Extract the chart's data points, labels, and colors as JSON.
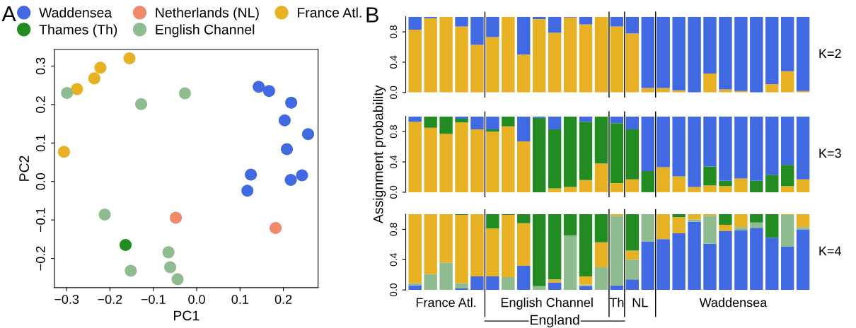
{
  "chart_data": [
    {
      "type": "scatter",
      "title": "A",
      "xlabel": "PC1",
      "ylabel": "PC2",
      "xlim": [
        -0.328,
        0.28
      ],
      "ylim": [
        -0.276,
        0.343
      ],
      "xticks": [
        {
          "value": -0.3,
          "label": "−0.3"
        },
        {
          "value": -0.2,
          "label": "−0.2"
        },
        {
          "value": -0.1,
          "label": "−0.1"
        },
        {
          "value": 0,
          "label": "0.0"
        },
        {
          "value": 0.1,
          "label": "0.1"
        },
        {
          "value": 0.2,
          "label": "0.2"
        }
      ],
      "yticks": [
        {
          "value": -0.2,
          "label": "−0.2"
        },
        {
          "value": -0.1,
          "label": "−0.1"
        },
        {
          "value": 0,
          "label": "0.0"
        },
        {
          "value": 0.1,
          "label": "0.1"
        },
        {
          "value": 0.2,
          "label": "0.2"
        },
        {
          "value": 0.3,
          "label": "0.3"
        }
      ],
      "legend": "top",
      "marker": "circle",
      "series": [
        {
          "name": "Waddensea",
          "color": "#4169e1",
          "x": [
            0.143,
            0.167,
            0.218,
            0.203,
            0.257,
            0.208,
            0.125,
            0.117,
            0.217,
            0.243
          ],
          "values": [
            0.246,
            0.235,
            0.205,
            0.159,
            0.123,
            0.084,
            0.018,
            -0.024,
            0.004,
            0.016
          ]
        },
        {
          "name": "Netherlands (NL)",
          "color": "#f08a6b",
          "x": [
            -0.048,
            0.182
          ],
          "values": [
            -0.094,
            -0.121
          ]
        },
        {
          "name": "France Atl.",
          "color": "#e8b023",
          "x": [
            -0.155,
            -0.222,
            -0.236,
            -0.276,
            -0.306
          ],
          "values": [
            0.32,
            0.296,
            0.268,
            0.24,
            0.077
          ]
        },
        {
          "name": "Thames (Th)",
          "color": "#228b22",
          "x": [
            -0.164
          ],
          "values": [
            -0.165
          ]
        },
        {
          "name": "English Channel",
          "color": "#8fbc8f",
          "x": [
            -0.299,
            -0.027,
            -0.128,
            -0.212,
            -0.065,
            -0.061,
            -0.044,
            -0.152
          ],
          "values": [
            0.23,
            0.229,
            0.201,
            -0.086,
            -0.184,
            -0.223,
            -0.254,
            -0.232
          ]
        }
      ]
    },
    {
      "type": "bar",
      "stacked": true,
      "title": "B",
      "categories": [
        null,
        null,
        null,
        null,
        null,
        null,
        null,
        null,
        null,
        null,
        null,
        null,
        null,
        null,
        null,
        null,
        null,
        null,
        null,
        null,
        null,
        null,
        null,
        null,
        null,
        null
      ],
      "ylim": [
        0,
        1
      ],
      "yticks": [
        {
          "value": 0,
          "label": "0.0"
        },
        {
          "value": 0.4,
          "label": "0.4"
        },
        {
          "value": 0.8,
          "label": "0.8"
        }
      ],
      "tick_labels": "y",
      "annotations": [
        "K=2"
      ],
      "series": [
        {
          "color": "#e8b023",
          "values": [
            0.83,
            0.98,
            1.0,
            0.87,
            0.63,
            0.73,
            1.0,
            0.5,
            0.97,
            0.79,
            0.99,
            0.9,
            1.0,
            0.87,
            0.78,
            0.06,
            0.06,
            0.03,
            0,
            0.25,
            0.04,
            0.02,
            0,
            0.11,
            0.28,
            0.02
          ]
        },
        {
          "color": "#4169e1",
          "values": [
            0.17,
            0.02,
            0,
            0.13,
            0.37,
            0.27,
            0,
            0.5,
            0.03,
            0.21,
            0.01,
            0.1,
            0,
            0.13,
            0.22,
            0.94,
            0.94,
            0.97,
            1.0,
            0.75,
            0.96,
            0.98,
            1.0,
            0.89,
            0.72,
            0.98
          ]
        }
      ]
    },
    {
      "type": "bar",
      "stacked": true,
      "ylabel": "Assignment probability",
      "categories": [
        null,
        null,
        null,
        null,
        null,
        null,
        null,
        null,
        null,
        null,
        null,
        null,
        null,
        null,
        null,
        null,
        null,
        null,
        null,
        null,
        null,
        null,
        null,
        null,
        null,
        null
      ],
      "ylim": [
        0,
        1
      ],
      "yticks": [
        {
          "value": 0,
          "label": "0.0"
        },
        {
          "value": 0.4,
          "label": "0.4"
        },
        {
          "value": 0.8,
          "label": "0.8"
        }
      ],
      "tick_labels": "y",
      "annotations": [
        "K=3"
      ],
      "series": [
        {
          "color": "#e8b023",
          "values": [
            0.93,
            0.85,
            0.77,
            0.92,
            0.83,
            0.8,
            0.87,
            0.67,
            0,
            0.05,
            0.07,
            0.16,
            0.38,
            0.12,
            0.17,
            0,
            0.33,
            0.21,
            0.07,
            0.09,
            0.08,
            0.18,
            0,
            0,
            0.08,
            0.17
          ]
        },
        {
          "color": "#228b22",
          "values": [
            0,
            0.15,
            0.23,
            0.05,
            0,
            0.03,
            0.13,
            0,
            0.98,
            0.78,
            0.93,
            0.77,
            0.62,
            0.79,
            0.66,
            0.28,
            0,
            0,
            0,
            0.25,
            0.07,
            0,
            0.15,
            0.23,
            0.28,
            0
          ]
        },
        {
          "color": "#4169e1",
          "values": [
            0.07,
            0,
            0,
            0.03,
            0.17,
            0.17,
            0,
            0.33,
            0.02,
            0.17,
            0,
            0.07,
            0,
            0.09,
            0.17,
            0.72,
            0.67,
            0.79,
            0.93,
            0.66,
            0.85,
            0.82,
            0.85,
            0.77,
            0.64,
            0.83
          ]
        }
      ]
    },
    {
      "type": "bar",
      "stacked": true,
      "categories": [
        null,
        null,
        null,
        null,
        null,
        null,
        null,
        null,
        null,
        null,
        null,
        null,
        null,
        null,
        null,
        null,
        null,
        null,
        null,
        null,
        null,
        null,
        null,
        null,
        null,
        null
      ],
      "ylim": [
        0,
        1
      ],
      "yticks": [
        {
          "value": 0,
          "label": "0.0"
        },
        {
          "value": 0.4,
          "label": "0.4"
        },
        {
          "value": 0.8,
          "label": "0.8"
        }
      ],
      "tick_labels": "y",
      "annotations": [
        "K=4",
        "France Atl.",
        "English Channel",
        "Th",
        "NL",
        "Waddensea",
        "England"
      ],
      "series": [
        {
          "color": "#4169e1",
          "values": [
            0.06,
            0,
            0,
            0.02,
            0.18,
            0.18,
            0,
            0.32,
            0,
            0.1,
            0,
            0.05,
            0,
            0.06,
            0.14,
            0.64,
            0.67,
            0.75,
            0.9,
            0.61,
            0.78,
            0.79,
            0.82,
            0.69,
            0.57,
            0.8
          ]
        },
        {
          "color": "#8fbc8f",
          "values": [
            0.03,
            0.21,
            0.36,
            0.07,
            0,
            0,
            0.17,
            0,
            0.05,
            0,
            0.72,
            0.02,
            0.3,
            0.92,
            0.26,
            0.36,
            0,
            0,
            0.03,
            0.37,
            0,
            0.04,
            0.07,
            0,
            0.42,
            0.03
          ]
        },
        {
          "color": "#e8b023",
          "values": [
            0.91,
            0.79,
            0.64,
            0.9,
            0.82,
            0.63,
            0.82,
            0.56,
            0,
            0.04,
            0,
            0.11,
            0.33,
            0.02,
            0.12,
            0,
            0.33,
            0.21,
            0.07,
            0.02,
            0.08,
            0.17,
            0,
            0,
            0.01,
            0.17
          ]
        },
        {
          "color": "#228b22",
          "values": [
            0,
            0,
            0,
            0.01,
            0,
            0.19,
            0.01,
            0.12,
            0.95,
            0.86,
            0.28,
            0.82,
            0.37,
            0,
            0.48,
            0,
            0,
            0.04,
            0,
            0,
            0.14,
            0,
            0.11,
            0.31,
            0,
            0
          ]
        }
      ]
    }
  ]
}
